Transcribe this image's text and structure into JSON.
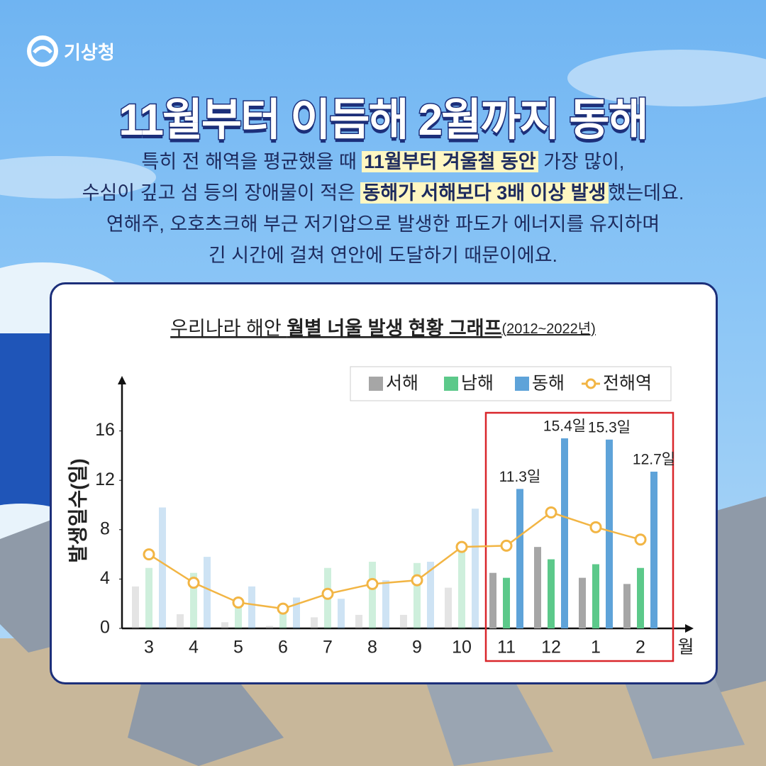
{
  "header": {
    "logo": "기상청",
    "title": "11월부터 이듬해 2월까지 동해",
    "lines": [
      [
        {
          "text": "특히 전 해역을 평균했을 때 "
        },
        {
          "text": "11월부터 겨울철 동안",
          "highlight": true
        },
        {
          "text": " 가장 많이,"
        }
      ],
      [
        {
          "text": "수심이 깊고 섬 등의 장애물이 적은 "
        },
        {
          "text": "동해가 서해보다 3배 이상 발생",
          "highlight": true
        },
        {
          "text": "했는데요."
        }
      ],
      [
        {
          "text": "연해주, 오호츠크해 부근 저기압으로 발생한 파도가 에너지를 유지하며"
        }
      ],
      [
        {
          "text": "긴 시간에 걸쳐 연안에 도달하기 때문이에요."
        }
      ]
    ]
  },
  "chart_data": {
    "type": "bar",
    "title": [
      {
        "text": "우리나라 해안 "
      },
      {
        "text": "월별 너울 발생 현황 그래프",
        "bold": true
      },
      {
        "text": "(2012~2022년)",
        "small": true
      }
    ],
    "ylabel": "발생일수(일)",
    "xlabel": "월",
    "categories": [
      "3",
      "4",
      "5",
      "6",
      "7",
      "8",
      "9",
      "10",
      "11",
      "12",
      "1",
      "2"
    ],
    "highlight_from_index": 8,
    "ylim": [
      0,
      20
    ],
    "yticks": [
      0,
      4,
      8,
      12,
      16
    ],
    "series": [
      {
        "name": "서해",
        "color": "#a6a6a6",
        "values": [
          3.4,
          1.15,
          0.5,
          0.2,
          0.9,
          1.1,
          1.1,
          3.3,
          4.5,
          6.6,
          4.1,
          3.6
        ]
      },
      {
        "name": "남해",
        "color": "#5cc98a",
        "values": [
          4.9,
          4.5,
          2.3,
          1.6,
          4.9,
          5.4,
          5.3,
          6.2,
          4.1,
          5.6,
          5.2,
          4.9
        ]
      },
      {
        "name": "동해",
        "color": "#5ea3d9",
        "values": [
          9.8,
          5.8,
          3.4,
          2.5,
          2.4,
          3.9,
          5.4,
          9.7,
          11.3,
          15.4,
          15.3,
          12.7
        ],
        "value_labels": [
          null,
          null,
          null,
          null,
          null,
          null,
          null,
          null,
          "11.3일",
          "15.4일",
          "15.3일",
          "12.7일"
        ]
      },
      {
        "name": "전해역",
        "type": "line",
        "color": "#f2b544",
        "values": [
          6.0,
          3.7,
          2.1,
          1.6,
          2.8,
          3.6,
          3.9,
          6.6,
          6.7,
          9.4,
          8.2,
          7.2
        ]
      }
    ]
  }
}
